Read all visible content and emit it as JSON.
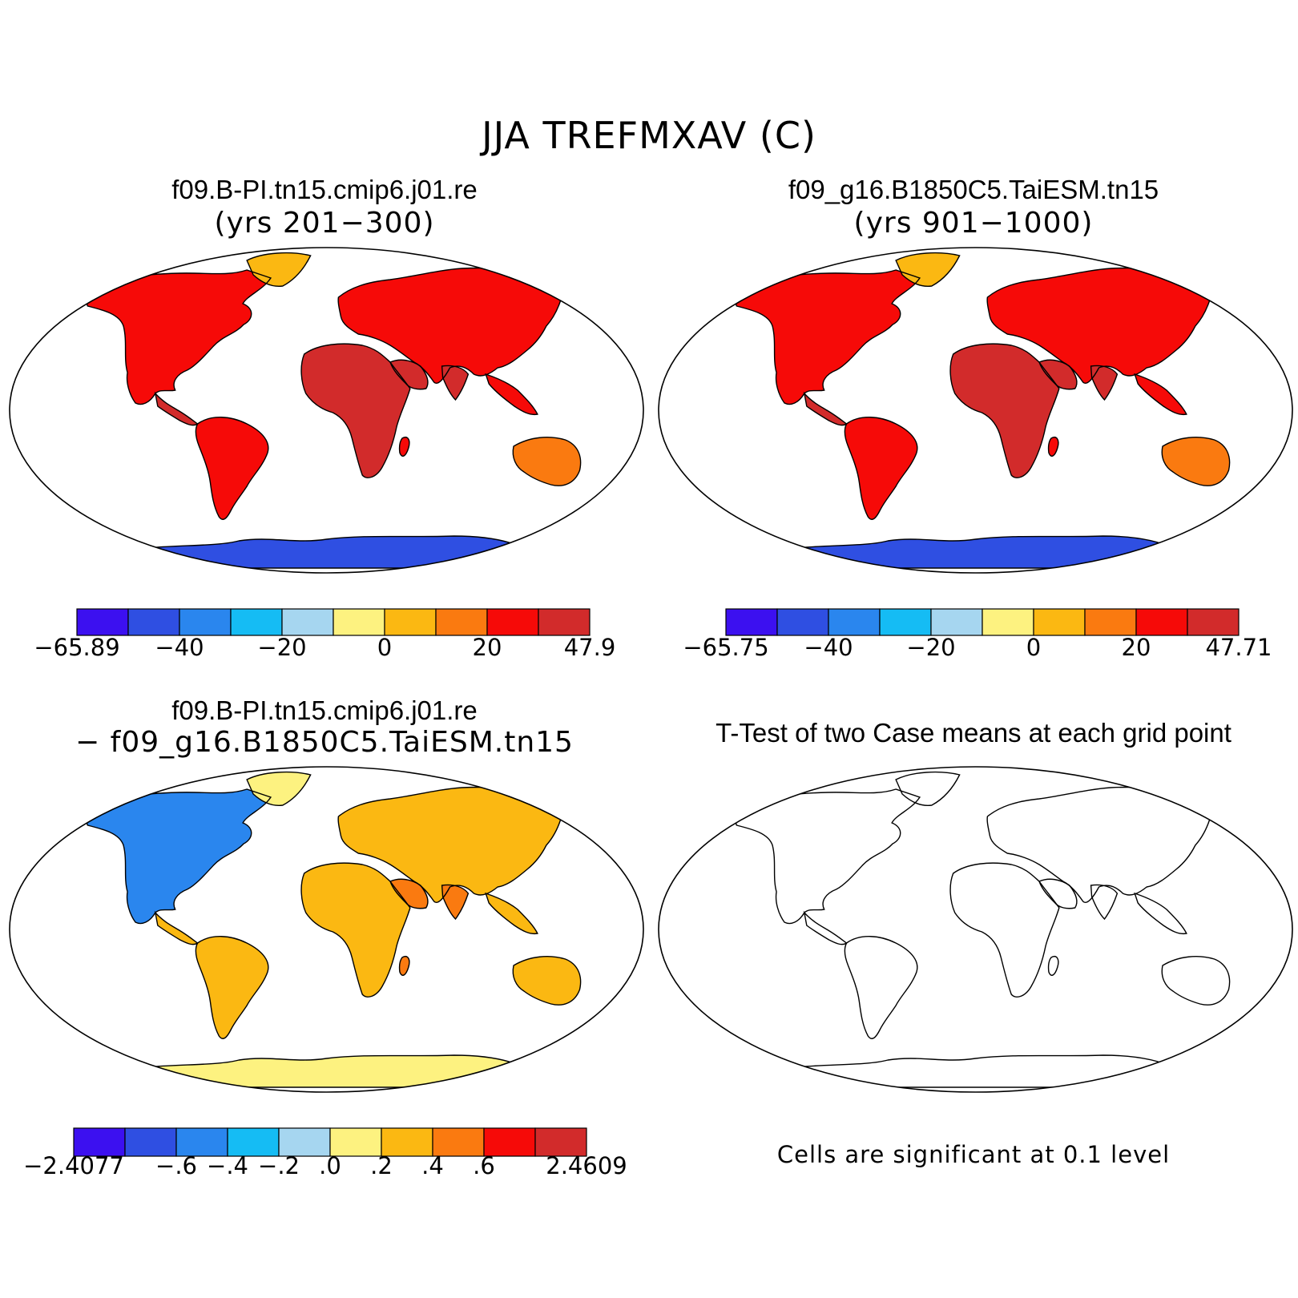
{
  "figure": {
    "title": "JJA TREFMXAV (C)"
  },
  "panels": [
    {
      "id": "case1",
      "title": "f09.B-PI.tn15.cmip6.j01.re",
      "subtitle": "(yrs 201−300)",
      "style": "warm",
      "colorbar": {
        "colors": [
          "#3c10f0",
          "#2f4fe2",
          "#2a86ee",
          "#15bcf4",
          "#a6d6f0",
          "#fdf280",
          "#fbb812",
          "#fa7a10",
          "#f60a08",
          "#d22b2b"
        ],
        "labels": [
          "−65.89",
          "−40",
          "−20",
          "0",
          "20",
          "47.9"
        ]
      }
    },
    {
      "id": "case2",
      "title": "f09_g16.B1850C5.TaiESM.tn15",
      "subtitle": "(yrs 901−1000)",
      "style": "warm",
      "colorbar": {
        "colors": [
          "#3c10f0",
          "#2f4fe2",
          "#2a86ee",
          "#15bcf4",
          "#a6d6f0",
          "#fdf280",
          "#fbb812",
          "#fa7a10",
          "#f60a08",
          "#d22b2b"
        ],
        "labels": [
          "−65.75",
          "−40",
          "−20",
          "0",
          "20",
          "47.71"
        ]
      }
    },
    {
      "id": "difference",
      "title": "f09.B-PI.tn15.cmip6.j01.re",
      "subtitle": "− f09_g16.B1850C5.TaiESM.tn15",
      "style": "diff",
      "colorbar": {
        "colors": [
          "#3c10f0",
          "#2f4fe2",
          "#2a86ee",
          "#15bcf4",
          "#a6d6f0",
          "#fdf280",
          "#fbb812",
          "#fa7a10",
          "#f60a08",
          "#d22b2b"
        ],
        "labels": [
          "−2.4077",
          "−.6",
          "−.4",
          "−.2",
          ".0",
          ".2",
          ".4",
          ".6",
          "2.4609"
        ]
      }
    },
    {
      "id": "ttest",
      "title": "T-Test of two Case means at each grid point",
      "subtitle": "",
      "style": "sig",
      "note": "Cells are significant at 0.1 level"
    }
  ],
  "colors": {
    "land_outline": "#000000",
    "significant": "#f60a08"
  }
}
